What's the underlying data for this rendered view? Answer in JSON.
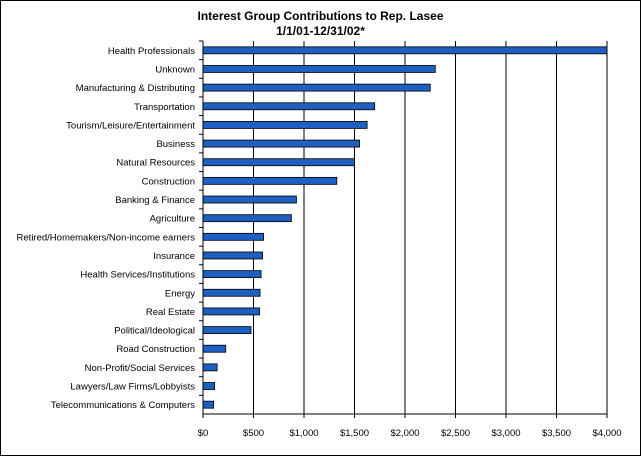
{
  "chart_data": {
    "type": "bar",
    "orientation": "horizontal",
    "title": "Interest Group Contributions to Rep. Lasee",
    "subtitle": "1/1/01-12/31/02*",
    "xlabel": "",
    "ylabel": "",
    "xlim": [
      0,
      4000
    ],
    "x_ticks": [
      0,
      500,
      1000,
      1500,
      2000,
      2500,
      3000,
      3500,
      4000
    ],
    "x_tick_labels": [
      "$0",
      "$500",
      "$1,000",
      "$1,500",
      "$2,000",
      "$2,500",
      "$3,000",
      "$3,500",
      "$4,000"
    ],
    "grid": "vertical major gridlines",
    "legend": "none",
    "bar_color": "#1f5fbf",
    "categories": [
      "Health Professionals",
      "Unknown",
      "Manufacturing & Distributing",
      "Transportation",
      "Tourism/Leisure/Entertainment",
      "Business",
      "Natural Resources",
      "Construction",
      "Banking & Finance",
      "Agriculture",
      "Retired/Homemakers/Non-income earners",
      "Insurance",
      "Health Services/Institutions",
      "Energy",
      "Real Estate",
      "Political/Ideological",
      "Road Construction",
      "Non-Profit/Social Services",
      "Lawyers/Law Firms/Lobbyists",
      "Telecommunications & Computers"
    ],
    "values": [
      4000,
      2300,
      2250,
      1700,
      1625,
      1550,
      1500,
      1325,
      925,
      875,
      600,
      590,
      575,
      565,
      560,
      475,
      225,
      140,
      115,
      105
    ]
  }
}
